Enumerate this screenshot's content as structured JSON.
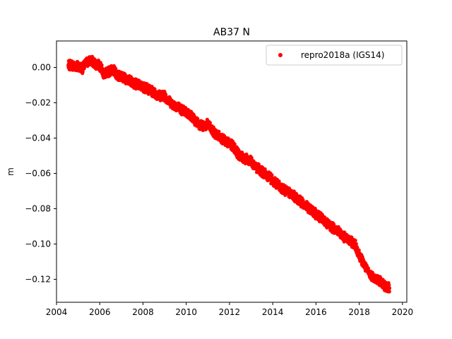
{
  "chart_data": {
    "type": "scatter",
    "title": "AB37 N",
    "xlabel": "",
    "ylabel": "m",
    "xlim": [
      2004.0,
      2020.2
    ],
    "ylim": [
      -0.133,
      0.015
    ],
    "x_ticks": [
      2004,
      2006,
      2008,
      2010,
      2012,
      2014,
      2016,
      2018,
      2020
    ],
    "x_tick_labels": [
      "2004",
      "2006",
      "2008",
      "2010",
      "2012",
      "2014",
      "2016",
      "2018",
      "2020"
    ],
    "y_ticks": [
      0.0,
      -0.02,
      -0.04,
      -0.06,
      -0.08,
      -0.1,
      -0.12
    ],
    "y_tick_labels": [
      "0.00",
      "−0.02",
      "−0.04",
      "−0.06",
      "−0.08",
      "−0.10",
      "−0.12"
    ],
    "grid": false,
    "legend_position": "top-right",
    "series": [
      {
        "name": "repro2018a (IGS14)",
        "color": "#ff0000",
        "marker": "circle",
        "points": [
          [
            2004.55,
            0.001
          ],
          [
            2004.7,
            0.0015
          ],
          [
            2004.85,
            0.0005
          ],
          [
            2005.0,
            0.001
          ],
          [
            2005.2,
            -0.0005
          ],
          [
            2005.4,
            0.003
          ],
          [
            2005.6,
            0.004
          ],
          [
            2005.8,
            0.002
          ],
          [
            2006.0,
            0.001
          ],
          [
            2006.2,
            -0.004
          ],
          [
            2006.4,
            -0.0025
          ],
          [
            2006.6,
            -0.001
          ],
          [
            2006.8,
            -0.004
          ],
          [
            2007.0,
            -0.0055
          ],
          [
            2007.2,
            -0.0065
          ],
          [
            2007.4,
            -0.0075
          ],
          [
            2007.6,
            -0.009
          ],
          [
            2007.8,
            -0.01
          ],
          [
            2008.0,
            -0.011
          ],
          [
            2008.2,
            -0.012
          ],
          [
            2008.4,
            -0.0135
          ],
          [
            2008.6,
            -0.015
          ],
          [
            2008.8,
            -0.016
          ],
          [
            2009.0,
            -0.016
          ],
          [
            2009.2,
            -0.019
          ],
          [
            2009.4,
            -0.021
          ],
          [
            2009.6,
            -0.022
          ],
          [
            2009.8,
            -0.024
          ],
          [
            2010.0,
            -0.0255
          ],
          [
            2010.2,
            -0.027
          ],
          [
            2010.4,
            -0.03
          ],
          [
            2010.6,
            -0.032
          ],
          [
            2010.8,
            -0.0335
          ],
          [
            2011.0,
            -0.032
          ],
          [
            2011.2,
            -0.036
          ],
          [
            2011.4,
            -0.038
          ],
          [
            2011.6,
            -0.0395
          ],
          [
            2011.8,
            -0.042
          ],
          [
            2012.0,
            -0.043
          ],
          [
            2012.2,
            -0.045
          ],
          [
            2012.4,
            -0.049
          ],
          [
            2012.6,
            -0.051
          ],
          [
            2012.8,
            -0.052
          ],
          [
            2013.0,
            -0.053
          ],
          [
            2013.2,
            -0.056
          ],
          [
            2013.4,
            -0.058
          ],
          [
            2013.6,
            -0.06
          ],
          [
            2013.8,
            -0.0615
          ],
          [
            2014.0,
            -0.064
          ],
          [
            2014.2,
            -0.066
          ],
          [
            2014.4,
            -0.068
          ],
          [
            2014.6,
            -0.07
          ],
          [
            2014.8,
            -0.071
          ],
          [
            2015.0,
            -0.073
          ],
          [
            2015.2,
            -0.075
          ],
          [
            2015.4,
            -0.077
          ],
          [
            2015.6,
            -0.079
          ],
          [
            2015.8,
            -0.081
          ],
          [
            2016.0,
            -0.083
          ],
          [
            2016.2,
            -0.085
          ],
          [
            2016.4,
            -0.087
          ],
          [
            2016.6,
            -0.089
          ],
          [
            2016.8,
            -0.091
          ],
          [
            2017.0,
            -0.092
          ],
          [
            2017.2,
            -0.095
          ],
          [
            2017.4,
            -0.097
          ],
          [
            2017.6,
            -0.0985
          ],
          [
            2017.8,
            -0.1
          ],
          [
            2018.0,
            -0.106
          ],
          [
            2018.2,
            -0.111
          ],
          [
            2018.4,
            -0.116
          ],
          [
            2018.6,
            -0.118
          ],
          [
            2018.8,
            -0.12
          ],
          [
            2019.0,
            -0.121
          ],
          [
            2019.2,
            -0.124
          ],
          [
            2019.4,
            -0.125
          ]
        ]
      }
    ]
  }
}
